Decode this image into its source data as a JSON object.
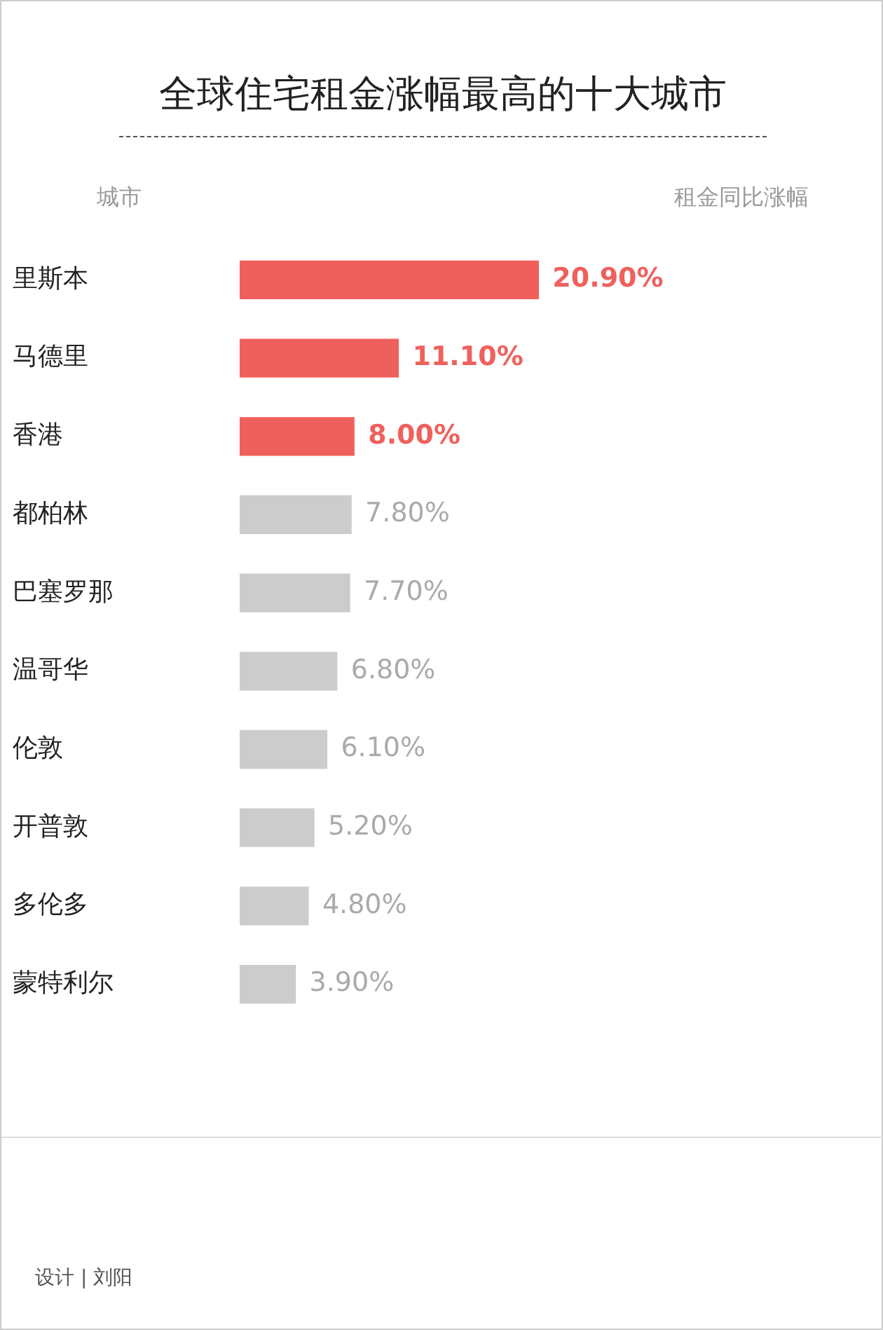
{
  "chart_data": {
    "type": "bar",
    "orientation": "horizontal",
    "title": "全球住宅租金涨幅最高的十大城市",
    "ylabel": "城市",
    "categories": [
      "里斯本",
      "马德里",
      "香港",
      "都柏林",
      "巴塞罗那",
      "温哥华",
      "伦敦",
      "开普敦",
      "多伦多",
      "蒙特利尔"
    ],
    "values": [
      20.9,
      11.1,
      8.0,
      7.8,
      7.7,
      6.8,
      6.1,
      5.2,
      4.8,
      3.9
    ],
    "value_labels": [
      "20.90%",
      "11.10%",
      "8.00%",
      "7.80%",
      "7.70%",
      "6.80%",
      "6.10%",
      "5.20%",
      "4.80%",
      "3.90%"
    ],
    "colors": [
      "#ef605d",
      "#ef605d",
      "#ef605d",
      "#cccccc",
      "#cccccc",
      "#cccccc",
      "#cccccc",
      "#cccccc",
      "#cccccc",
      "#cccccc"
    ],
    "annotations": [
      "租金同比涨幅",
      "设计 | 刘阳"
    ]
  }
}
